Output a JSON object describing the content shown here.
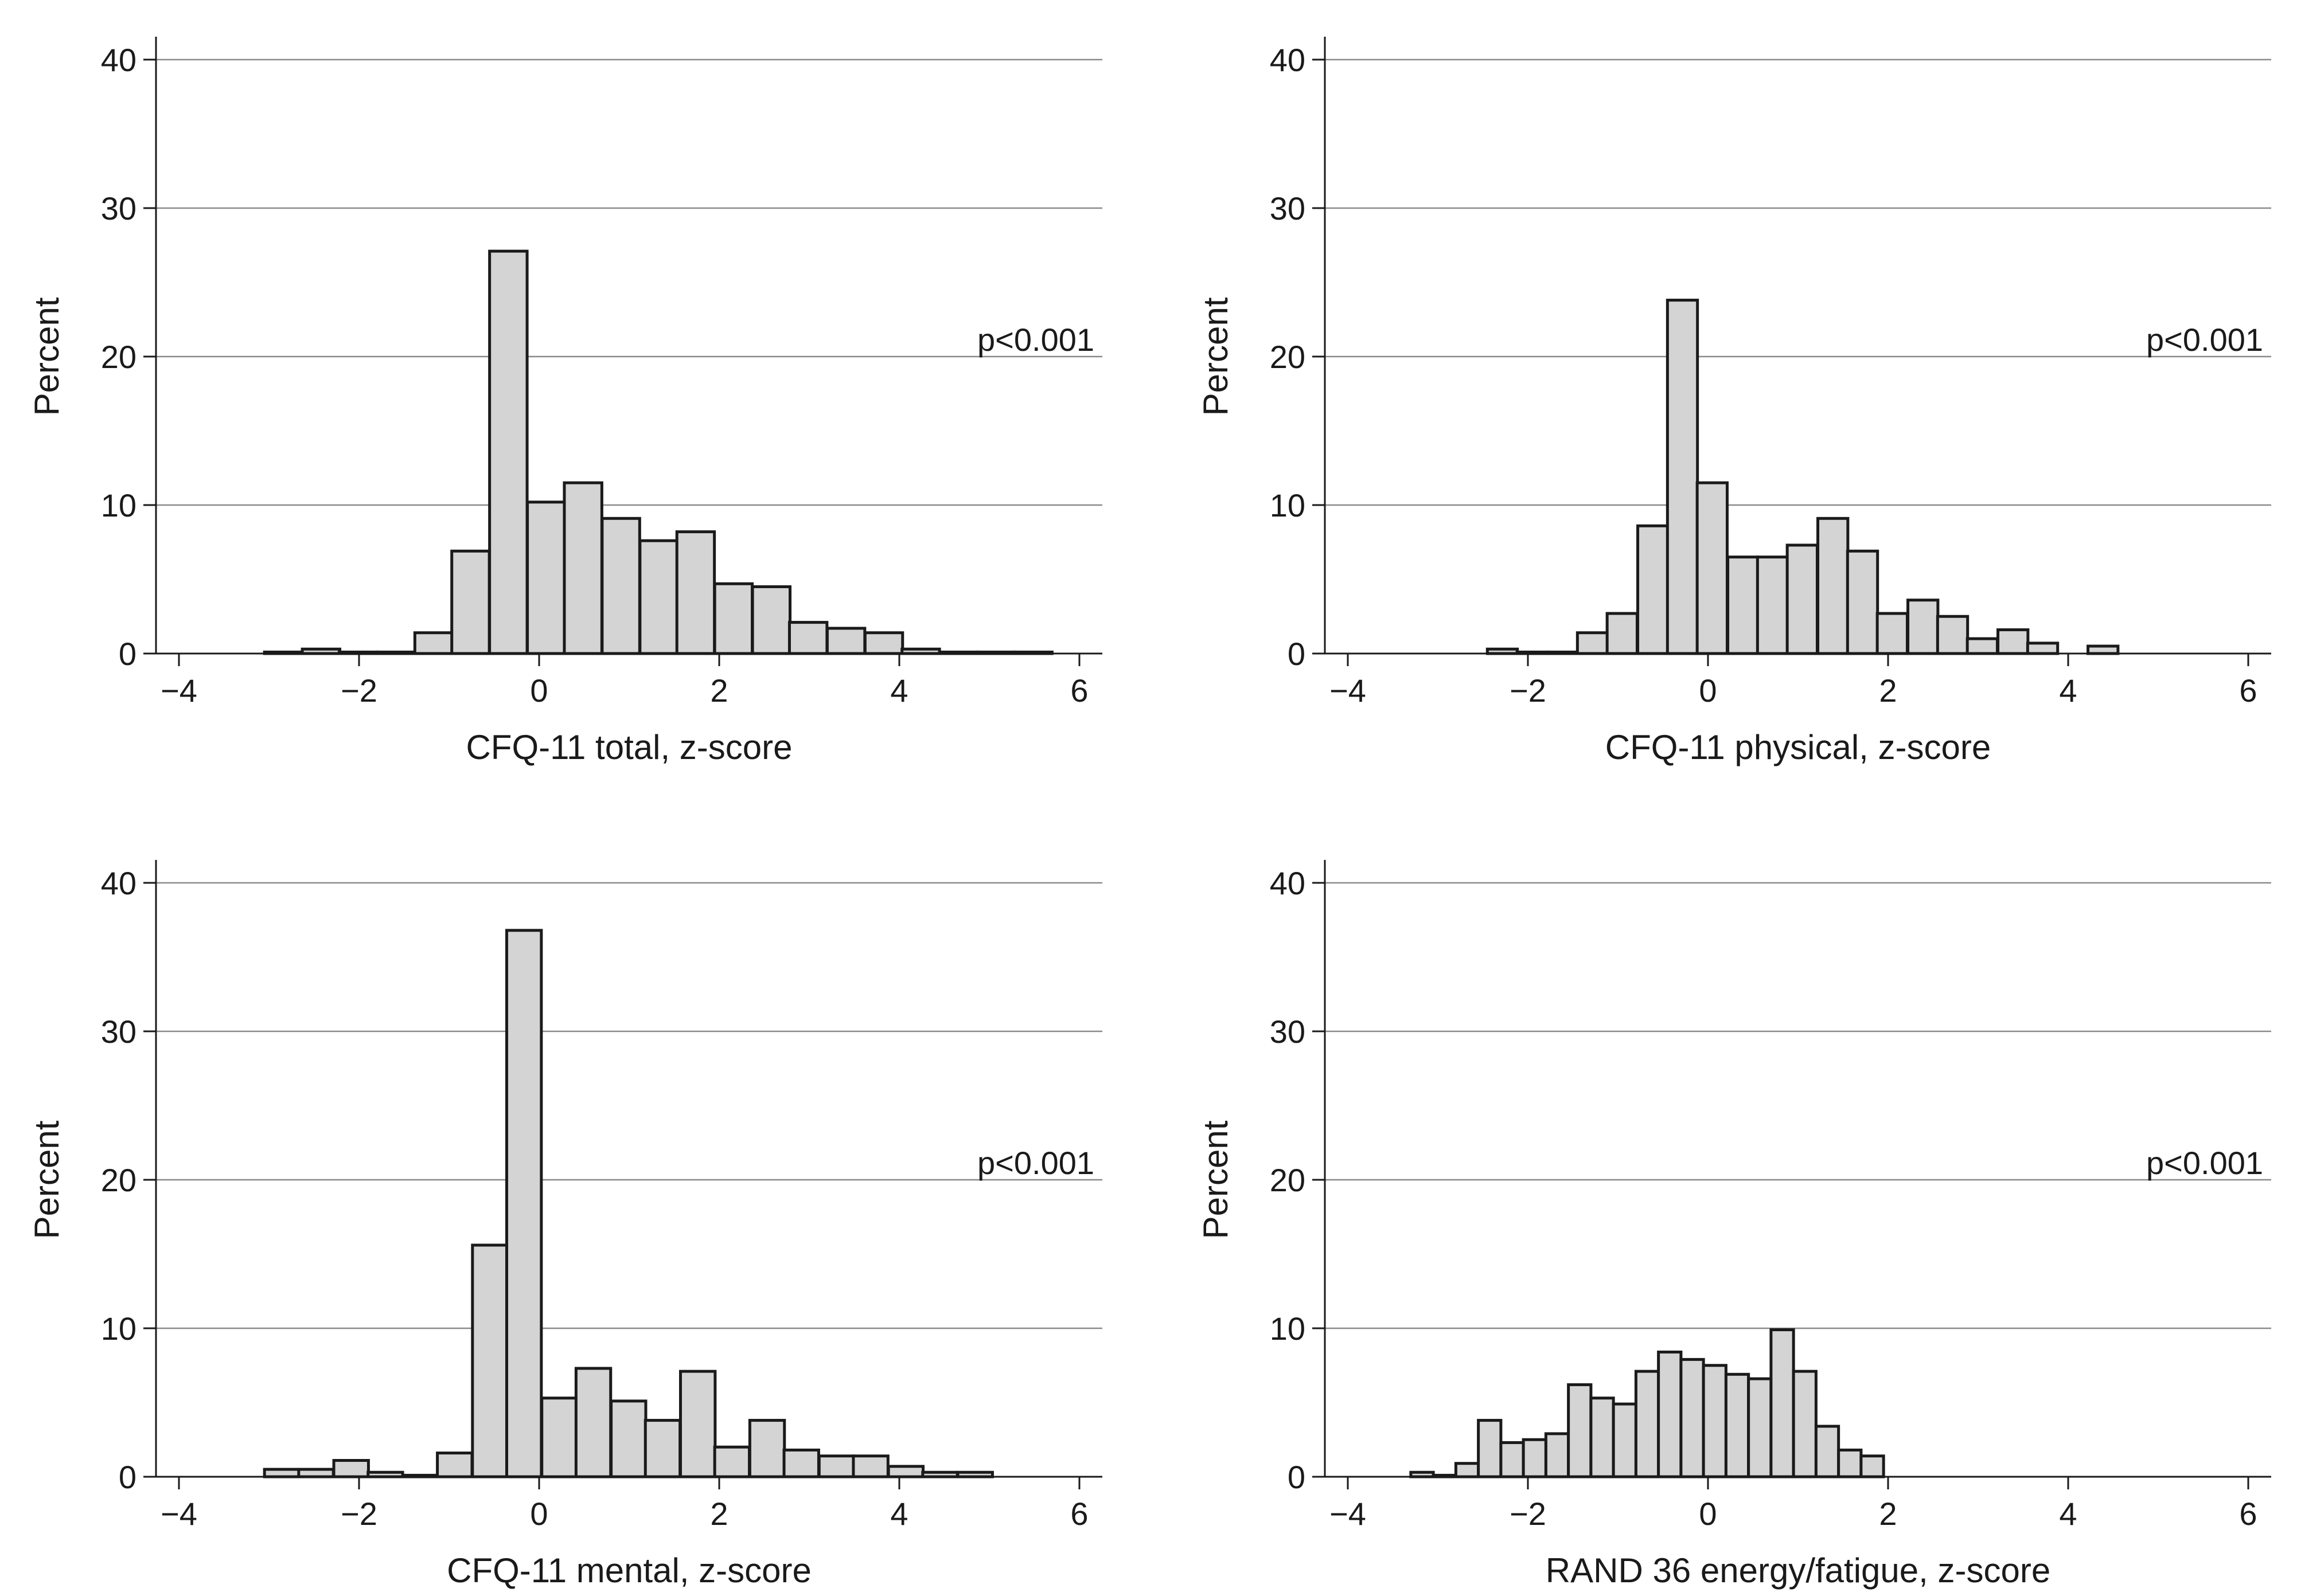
{
  "chart_data": [
    {
      "type": "bar",
      "subtype": "histogram",
      "xlabel": "CFQ-11 total, z-score",
      "ylabel": "Percent",
      "annotation": "p<0.001",
      "xlim": [
        -4,
        6
      ],
      "ylim": [
        0,
        40
      ],
      "xticks": [
        "−4",
        "−2",
        "0",
        "2",
        "4",
        "6"
      ],
      "yticks": [
        "0",
        "10",
        "20",
        "30",
        "40"
      ],
      "grid": true,
      "bin_width": 0.4167,
      "bins": [
        {
          "start": -3.05,
          "value": 0.1
        },
        {
          "start": -2.63,
          "value": 0.3
        },
        {
          "start": -2.22,
          "value": 0.1
        },
        {
          "start": -1.8,
          "value": 0.1
        },
        {
          "start": -1.38,
          "value": 1.4
        },
        {
          "start": -0.97,
          "value": 6.9
        },
        {
          "start": -0.55,
          "value": 27.1
        },
        {
          "start": -0.13,
          "value": 10.2
        },
        {
          "start": 0.28,
          "value": 11.5
        },
        {
          "start": 0.7,
          "value": 9.1
        },
        {
          "start": 1.12,
          "value": 7.6
        },
        {
          "start": 1.53,
          "value": 8.2
        },
        {
          "start": 1.95,
          "value": 4.7
        },
        {
          "start": 2.37,
          "value": 4.5
        },
        {
          "start": 2.78,
          "value": 2.1
        },
        {
          "start": 3.2,
          "value": 1.7
        },
        {
          "start": 3.62,
          "value": 1.4
        },
        {
          "start": 4.03,
          "value": 0.3
        },
        {
          "start": 4.45,
          "value": 0.1
        },
        {
          "start": 4.87,
          "value": 0.1
        },
        {
          "start": 5.28,
          "value": 0.1
        }
      ]
    },
    {
      "type": "bar",
      "subtype": "histogram",
      "xlabel": "CFQ-11 physical, z-score",
      "ylabel": "Percent",
      "annotation": "p<0.001",
      "xlim": [
        -4,
        6
      ],
      "ylim": [
        0,
        40
      ],
      "xticks": [
        "−4",
        "−2",
        "0",
        "2",
        "4",
        "6"
      ],
      "yticks": [
        "0",
        "10",
        "20",
        "30",
        "40"
      ],
      "grid": true,
      "bin_width": 0.3333,
      "bins": [
        {
          "start": -2.45,
          "value": 0.3
        },
        {
          "start": -2.12,
          "value": 0.1
        },
        {
          "start": -1.78,
          "value": 0.1
        },
        {
          "start": -1.45,
          "value": 1.4
        },
        {
          "start": -1.12,
          "value": 2.7
        },
        {
          "start": -0.78,
          "value": 8.6
        },
        {
          "start": -0.45,
          "value": 23.8
        },
        {
          "start": -0.12,
          "value": 11.5
        },
        {
          "start": 0.22,
          "value": 6.5
        },
        {
          "start": 0.55,
          "value": 6.5
        },
        {
          "start": 0.88,
          "value": 7.3
        },
        {
          "start": 1.22,
          "value": 9.1
        },
        {
          "start": 1.55,
          "value": 6.9
        },
        {
          "start": 1.88,
          "value": 2.7
        },
        {
          "start": 2.22,
          "value": 3.6
        },
        {
          "start": 2.55,
          "value": 2.5
        },
        {
          "start": 2.88,
          "value": 1.0
        },
        {
          "start": 3.22,
          "value": 1.6
        },
        {
          "start": 3.55,
          "value": 0.7
        },
        {
          "start": 4.22,
          "value": 0.5
        }
      ]
    },
    {
      "type": "bar",
      "subtype": "histogram",
      "xlabel": "CFQ-11 mental, z-score",
      "ylabel": "Percent",
      "annotation": "p<0.001",
      "xlim": [
        -4,
        6
      ],
      "ylim": [
        0,
        40
      ],
      "xticks": [
        "−4",
        "−2",
        "0",
        "2",
        "4",
        "6"
      ],
      "yticks": [
        "0",
        "10",
        "20",
        "30",
        "40"
      ],
      "grid": true,
      "bin_width": 0.3846,
      "bins": [
        {
          "start": -3.05,
          "value": 0.5
        },
        {
          "start": -2.67,
          "value": 0.5
        },
        {
          "start": -2.28,
          "value": 1.1
        },
        {
          "start": -1.9,
          "value": 0.3
        },
        {
          "start": -1.51,
          "value": 0.1
        },
        {
          "start": -1.13,
          "value": 1.6
        },
        {
          "start": -0.74,
          "value": 15.6
        },
        {
          "start": -0.36,
          "value": 36.8
        },
        {
          "start": 0.03,
          "value": 5.3
        },
        {
          "start": 0.41,
          "value": 7.3
        },
        {
          "start": 0.8,
          "value": 5.1
        },
        {
          "start": 1.18,
          "value": 3.8
        },
        {
          "start": 1.57,
          "value": 7.1
        },
        {
          "start": 1.95,
          "value": 2.0
        },
        {
          "start": 2.34,
          "value": 3.8
        },
        {
          "start": 2.72,
          "value": 1.8
        },
        {
          "start": 3.11,
          "value": 1.4
        },
        {
          "start": 3.49,
          "value": 1.4
        },
        {
          "start": 3.88,
          "value": 0.7
        },
        {
          "start": 4.26,
          "value": 0.3
        },
        {
          "start": 4.65,
          "value": 0.3
        }
      ]
    },
    {
      "type": "bar",
      "subtype": "histogram",
      "xlabel": "RAND 36 energy/fatigue, z-score",
      "ylabel": "Percent",
      "annotation": "p<0.001",
      "xlim": [
        -4,
        6
      ],
      "ylim": [
        0,
        40
      ],
      "xticks": [
        "−4",
        "−2",
        "0",
        "2",
        "4",
        "6"
      ],
      "yticks": [
        "0",
        "10",
        "20",
        "30",
        "40"
      ],
      "grid": true,
      "bin_width": 0.25,
      "bins": [
        {
          "start": -3.3,
          "value": 0.3
        },
        {
          "start": -3.05,
          "value": 0.1
        },
        {
          "start": -2.8,
          "value": 0.9
        },
        {
          "start": -2.55,
          "value": 3.8
        },
        {
          "start": -2.3,
          "value": 2.3
        },
        {
          "start": -2.05,
          "value": 2.5
        },
        {
          "start": -1.8,
          "value": 2.9
        },
        {
          "start": -1.55,
          "value": 6.2
        },
        {
          "start": -1.3,
          "value": 5.3
        },
        {
          "start": -1.05,
          "value": 4.9
        },
        {
          "start": -0.8,
          "value": 7.1
        },
        {
          "start": -0.55,
          "value": 8.4
        },
        {
          "start": -0.3,
          "value": 7.9
        },
        {
          "start": -0.05,
          "value": 7.5
        },
        {
          "start": 0.2,
          "value": 6.9
        },
        {
          "start": 0.45,
          "value": 6.6
        },
        {
          "start": 0.7,
          "value": 9.9
        },
        {
          "start": 0.95,
          "value": 7.1
        },
        {
          "start": 1.2,
          "value": 3.4
        },
        {
          "start": 1.45,
          "value": 1.8
        },
        {
          "start": 1.7,
          "value": 1.4
        }
      ]
    }
  ]
}
